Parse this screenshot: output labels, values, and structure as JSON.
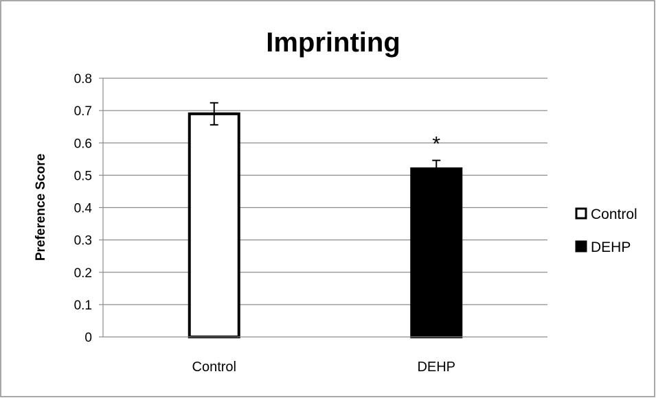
{
  "chart_data": {
    "type": "bar",
    "title": "Imprinting",
    "xlabel": "",
    "ylabel": "Preference Score",
    "ylim": [
      0,
      0.8
    ],
    "yticks": [
      "0",
      "0.1",
      "0.2",
      "0.3",
      "0.4",
      "0.5",
      "0.6",
      "0.7",
      "0.8"
    ],
    "categories": [
      "Control",
      "DEHP"
    ],
    "values": [
      0.69,
      0.52
    ],
    "errors": [
      0.034,
      0.026
    ],
    "bar_colors": [
      "#ffffff",
      "#000000"
    ],
    "legend": {
      "placement": "right",
      "entries": [
        {
          "label": "Control",
          "color": "#ffffff"
        },
        {
          "label": "DEHP",
          "color": "#000000"
        }
      ]
    },
    "annotations": [
      {
        "text": "*",
        "category": "DEHP"
      }
    ],
    "grid": true
  }
}
